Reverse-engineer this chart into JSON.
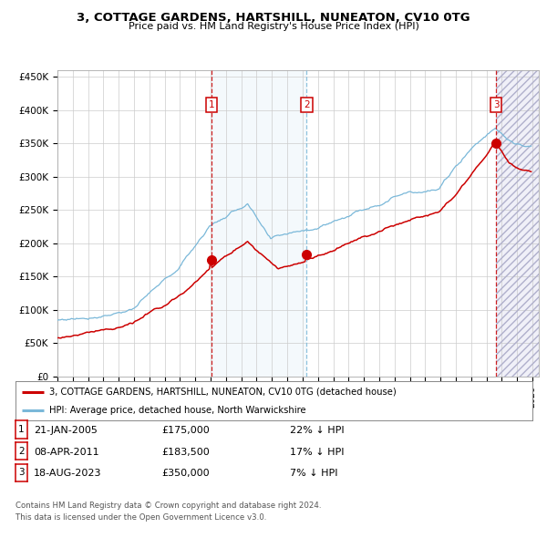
{
  "title": "3, COTTAGE GARDENS, HARTSHILL, NUNEATON, CV10 0TG",
  "subtitle": "Price paid vs. HM Land Registry's House Price Index (HPI)",
  "legend_property": "3, COTTAGE GARDENS, HARTSHILL, NUNEATON, CV10 0TG (detached house)",
  "legend_hpi": "HPI: Average price, detached house, North Warwickshire",
  "footer1": "Contains HM Land Registry data © Crown copyright and database right 2024.",
  "footer2": "This data is licensed under the Open Government Licence v3.0.",
  "transactions": [
    {
      "label": "1",
      "date": "21-JAN-2005",
      "price": 175000,
      "pct": "22%",
      "dir": "↓"
    },
    {
      "label": "2",
      "date": "08-APR-2011",
      "price": 183500,
      "pct": "17%",
      "dir": "↓"
    },
    {
      "label": "3",
      "date": "18-AUG-2023",
      "price": 350000,
      "pct": "7%",
      "dir": "↓"
    }
  ],
  "x_start_year": 1995,
  "x_end_year": 2026,
  "y_ticks": [
    0,
    50000,
    100000,
    150000,
    200000,
    250000,
    300000,
    350000,
    400000,
    450000
  ],
  "y_tick_labels": [
    "£0",
    "£50K",
    "£100K",
    "£150K",
    "£200K",
    "£250K",
    "£300K",
    "£350K",
    "£400K",
    "£450K"
  ],
  "hpi_color": "#7ab8d9",
  "property_color": "#cc0000",
  "grid_color": "#cccccc",
  "bg_plot": "#ffffff",
  "vline_red_color": "#cc0000",
  "vline_blue_color": "#7ab8d9",
  "anchor_years_hpi": [
    1995.0,
    1997.0,
    2000.0,
    2003.0,
    2005.0,
    2007.5,
    2009.0,
    2012.0,
    2015.0,
    2018.0,
    2020.0,
    2022.0,
    2023.67,
    2024.5,
    2025.0,
    2026.0
  ],
  "anchor_vals_hpi": [
    84000,
    90000,
    110000,
    165000,
    230000,
    265000,
    205000,
    225000,
    255000,
    290000,
    295000,
    355000,
    390000,
    375000,
    365000,
    360000
  ],
  "anchor_years_prop": [
    1995.0,
    1997.0,
    2000.0,
    2003.0,
    2005.0,
    2007.5,
    2009.5,
    2012.0,
    2015.0,
    2018.0,
    2020.0,
    2022.0,
    2023.67,
    2024.5,
    2025.0,
    2026.0
  ],
  "anchor_vals_prop": [
    58000,
    65000,
    78000,
    120000,
    160000,
    200000,
    160000,
    180000,
    205000,
    230000,
    245000,
    295000,
    350000,
    320000,
    310000,
    305000
  ]
}
